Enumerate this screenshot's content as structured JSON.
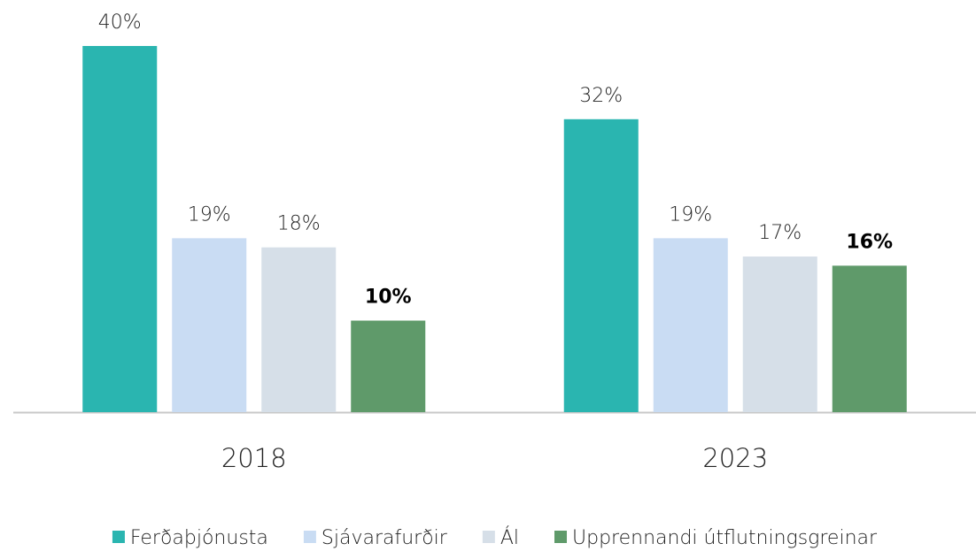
{
  "chart_data": {
    "type": "bar",
    "categories": [
      "2018",
      "2023"
    ],
    "series": [
      {
        "name": "Ferðaþjónusta",
        "color": "#2ab5b0",
        "values": [
          40,
          32
        ],
        "value_labels": [
          "40%",
          "32%"
        ]
      },
      {
        "name": "Sjávarafurðir",
        "color": "#c9dcf3",
        "values": [
          19,
          19
        ],
        "value_labels": [
          "19%",
          "19%"
        ]
      },
      {
        "name": "Ál",
        "color": "#d6dfe8",
        "values": [
          18,
          17
        ],
        "value_labels": [
          "18%",
          "17%"
        ]
      },
      {
        "name": "Upprennandi útflutningsgreinar",
        "color": "#5f9a6a",
        "values": [
          10,
          16
        ],
        "value_labels": [
          "10%",
          "16%"
        ],
        "bold": true
      }
    ],
    "legend": "bottom"
  }
}
